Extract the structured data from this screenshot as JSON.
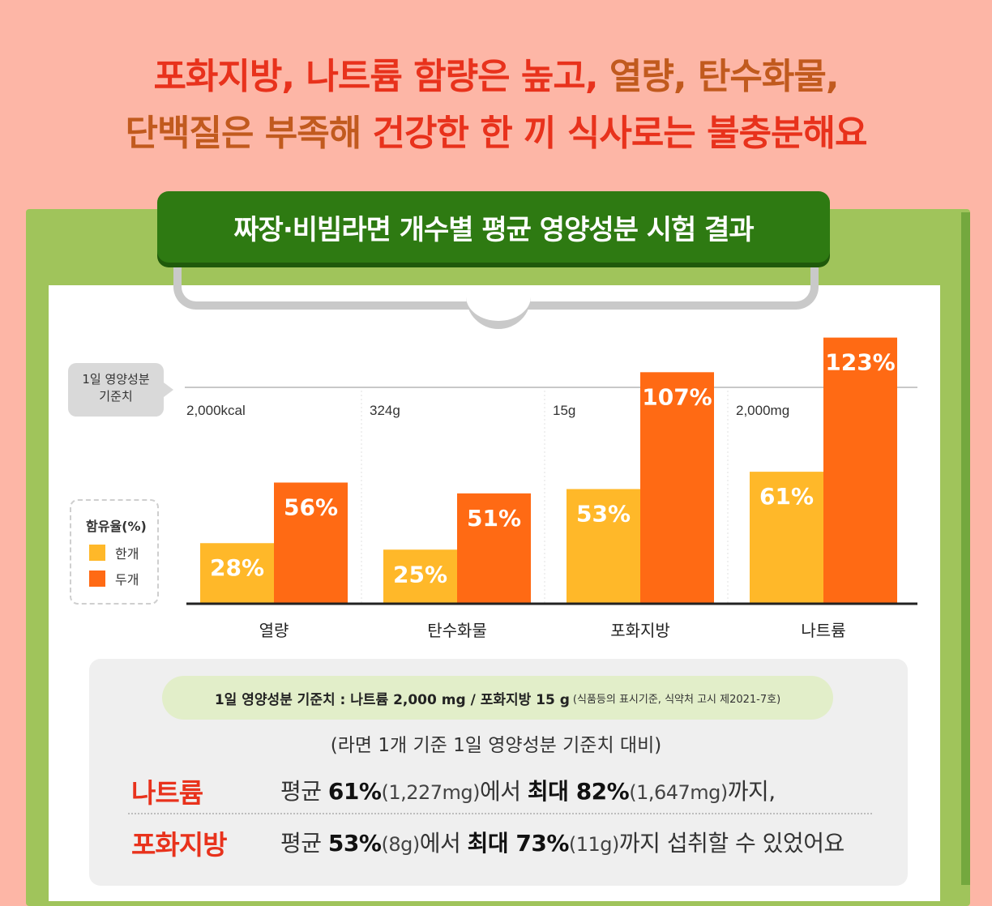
{
  "headline": {
    "line1_parts": [
      "포화지방, 나트륨 함량은 높고, ",
      "열량, 탄수화물,"
    ],
    "line2_parts": [
      "단백질은 부족해 ",
      "건강한 한 끼 식사로는 불충분해요"
    ]
  },
  "chart_title": "짜장·비빔라면 개수별 평균 영양성분 시험 결과",
  "reference_tag": {
    "line1": "1일 영양성분",
    "line2": "기준치"
  },
  "legend": {
    "title": "함유율(%)",
    "items": [
      "한개",
      "두개"
    ]
  },
  "colors": {
    "one_pack": "#ffb829",
    "two_packs": "#ff6a14",
    "accent_red": "#e8321c",
    "title_green": "#2e7a12"
  },
  "chart_data": {
    "type": "bar",
    "categories": [
      "열량",
      "탄수화물",
      "포화지방",
      "나트륨"
    ],
    "reference_values": [
      "2,000kcal",
      "324g",
      "15g",
      "2,000mg"
    ],
    "series": [
      {
        "name": "한개",
        "values": [
          28,
          25,
          53,
          61
        ]
      },
      {
        "name": "두개",
        "values": [
          56,
          51,
          107,
          123
        ]
      }
    ],
    "value_labels": [
      [
        "28%",
        "25%",
        "53%",
        "61%"
      ],
      [
        "56%",
        "51%",
        "107%",
        "123%"
      ]
    ],
    "reference_line": 100,
    "ylim": [
      0,
      123
    ],
    "legend_position": "left"
  },
  "note": {
    "bold": "1일 영양성분 기준치 : 나트륨 2,000 mg / 포화지방 15 g",
    "small": "(식품등의 표시기준, 식약처 고시 제2021-7호)"
  },
  "subhead": "(라면 1개 기준 1일 영양성분 기준치 대비)",
  "rows": [
    {
      "label": "나트륨",
      "avg_word": "평균 ",
      "avg_pct": "61%",
      "avg_amt": "(1,227mg)",
      "mid": "에서 ",
      "max_word": "최대 82%",
      "max_amt": "(1,647mg)",
      "tail": "까지,"
    },
    {
      "label": "포화지방",
      "avg_word": "평균 ",
      "avg_pct": "53%",
      "avg_amt": "(8g)",
      "mid": "에서 ",
      "max_word": "최대 73%",
      "max_amt": "(11g)",
      "tail": "까지 섭취할 수 있었어요"
    }
  ]
}
